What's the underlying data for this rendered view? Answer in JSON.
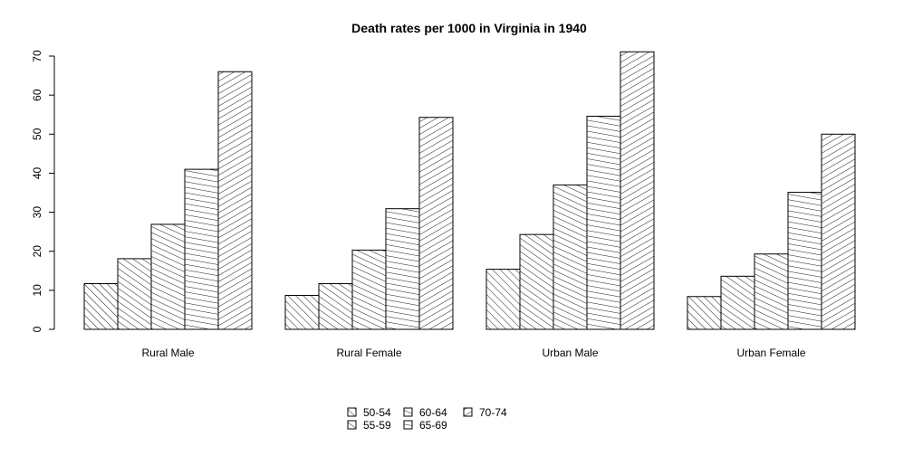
{
  "chart_data": {
    "type": "bar",
    "title": "Death rates per 1000 in Virginia in 1940",
    "xlabel": "",
    "ylabel": "",
    "ylim": [
      0,
      70
    ],
    "yticks": [
      "0",
      "10",
      "20",
      "30",
      "40",
      "50",
      "60",
      "70"
    ],
    "categories": [
      "Rural Male",
      "Rural Female",
      "Urban Male",
      "Urban Female"
    ],
    "series": [
      {
        "name": "50-54",
        "values": [
          11.7,
          8.7,
          15.4,
          8.4
        ],
        "hatch_angle": 45
      },
      {
        "name": "55-59",
        "values": [
          18.1,
          11.7,
          24.3,
          13.6
        ],
        "hatch_angle": 55
      },
      {
        "name": "60-64",
        "values": [
          26.9,
          20.3,
          37.0,
          19.3
        ],
        "hatch_angle": 65
      },
      {
        "name": "65-69",
        "values": [
          41.0,
          30.9,
          54.6,
          35.1
        ],
        "hatch_angle": 80
      },
      {
        "name": "70-74",
        "values": [
          66.0,
          54.3,
          71.1,
          50.0
        ],
        "hatch_angle": 120
      }
    ],
    "grid": false,
    "legend_position": "bottom-center",
    "colors": {
      "bar_fill": "#ffffff",
      "stroke": "#000000"
    }
  }
}
